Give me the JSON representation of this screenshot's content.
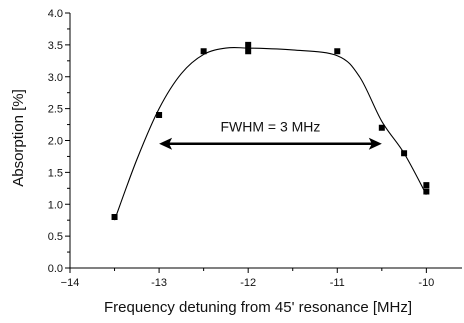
{
  "chart_data": {
    "type": "scatter",
    "title": "",
    "xlabel": "Frequency detuning from 45' resonance [MHz]",
    "ylabel": "Absorption [%]",
    "xlim": [
      -14,
      -9.6
    ],
    "ylim": [
      0.0,
      4.0
    ],
    "grid": false,
    "x_ticks": [
      -14,
      -13,
      -12,
      -11,
      -10
    ],
    "x_tick_labels": [
      "−14",
      "-13",
      "-12",
      "-11",
      "-10"
    ],
    "y_ticks": [
      0.0,
      0.5,
      1.0,
      1.5,
      2.0,
      2.5,
      3.0,
      3.5,
      4.0
    ],
    "y_tick_labels": [
      "0.0",
      "0.5",
      "1.0",
      "1.5",
      "2.0",
      "2.5",
      "3.0",
      "3.5",
      "4.0"
    ],
    "series": [
      {
        "points": [
          [
            -13.5,
            0.8
          ],
          [
            -13.0,
            2.4
          ],
          [
            -12.5,
            3.4
          ],
          [
            -12.0,
            3.5
          ],
          [
            -12.0,
            3.4
          ],
          [
            -11.0,
            3.4
          ],
          [
            -10.5,
            2.2
          ],
          [
            -10.25,
            1.8
          ],
          [
            -10.0,
            1.3
          ],
          [
            -10.0,
            1.2
          ]
        ]
      },
      {
        "fit_curve": [
          [
            -13.5,
            0.75
          ],
          [
            -13.25,
            1.7
          ],
          [
            -13.0,
            2.5
          ],
          [
            -12.75,
            3.05
          ],
          [
            -12.5,
            3.35
          ],
          [
            -12.25,
            3.45
          ],
          [
            -12.0,
            3.45
          ],
          [
            -11.5,
            3.42
          ],
          [
            -11.0,
            3.33
          ],
          [
            -10.75,
            3.0
          ],
          [
            -10.5,
            2.3
          ],
          [
            -10.25,
            1.8
          ],
          [
            -10.0,
            1.15
          ]
        ]
      }
    ],
    "annotations": [
      {
        "text": "FWHM = 3 MHz",
        "arrow_from_x": -13.0,
        "arrow_to_x": -10.5,
        "arrow_y": 1.95,
        "text_x": -11.75,
        "text_y": 2.22
      }
    ]
  }
}
